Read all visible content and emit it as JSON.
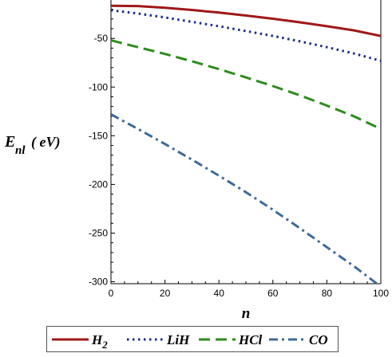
{
  "chart_data": {
    "type": "line",
    "xlabel": "n",
    "ylabel": {
      "main": "E",
      "sub": "nl",
      "unit": "( eV)"
    },
    "xlim": [
      0,
      100
    ],
    "ylim": [
      -302,
      -13
    ],
    "x_ticks": [
      0,
      20,
      40,
      60,
      80,
      100
    ],
    "y_ticks": [
      -50,
      -100,
      -150,
      -200,
      -250,
      -300
    ],
    "grid": false,
    "legend_position": "bottom",
    "series": [
      {
        "name": "H",
        "name_sub": "2",
        "color": "#a01818",
        "style": "solid",
        "x": [
          0,
          10,
          20,
          30,
          40,
          50,
          60,
          70,
          80,
          90,
          100
        ],
        "y": [
          -16.5,
          -16.8,
          -18.5,
          -20.8,
          -23.5,
          -26.5,
          -29.8,
          -33.5,
          -37.5,
          -41.7,
          -47.5
        ]
      },
      {
        "name": "LiH",
        "name_sub": "",
        "color": "#1a2a8c",
        "style": "dotted",
        "x": [
          0,
          10,
          20,
          30,
          40,
          50,
          60,
          70,
          80,
          90,
          100
        ],
        "y": [
          -21,
          -24.5,
          -28.5,
          -33,
          -37.5,
          -42.5,
          -47.5,
          -53,
          -59,
          -65.5,
          -73
        ]
      },
      {
        "name": "HCl",
        "name_sub": "",
        "color": "#2e8b1e",
        "style": "dashed",
        "x": [
          0,
          10,
          20,
          30,
          40,
          50,
          60,
          70,
          80,
          90,
          100
        ],
        "y": [
          -52,
          -59,
          -66,
          -73.5,
          -81.5,
          -90,
          -99,
          -108.5,
          -119,
          -130,
          -143
        ]
      },
      {
        "name": "CO",
        "name_sub": "",
        "color": "#3e6a99",
        "style": "dashdot",
        "x": [
          0,
          10,
          20,
          30,
          40,
          50,
          60,
          70,
          80,
          90,
          100
        ],
        "y": [
          -128,
          -143,
          -158.5,
          -174.5,
          -191,
          -208,
          -226,
          -245,
          -264.5,
          -284,
          -305
        ]
      }
    ]
  }
}
